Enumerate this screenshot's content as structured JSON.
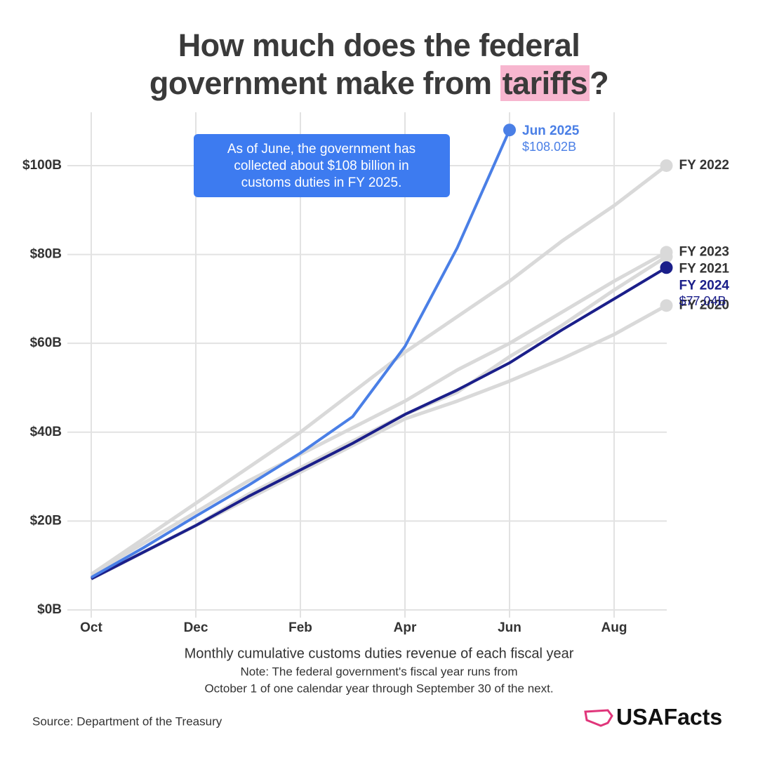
{
  "chart_data": {
    "type": "line",
    "title": [
      "How much does the federal",
      "government make from",
      "tariffs",
      "?"
    ],
    "annotation": [
      "As of June, the government has",
      "collected about $108 billion in",
      "customs duties in FY 2025."
    ],
    "x_label": "Monthly cumulative customs duties revenue of each fiscal year",
    "note": [
      "Note: The federal government's fiscal year runs from",
      "October 1 of one calendar year through September 30 of the next."
    ],
    "source": "Source: Department of the Treasury",
    "brand": "USAFacts",
    "categories": [
      "Oct",
      null,
      "Dec",
      null,
      "Feb",
      null,
      "Apr",
      null,
      "Jun",
      null,
      "Aug",
      null
    ],
    "series": [
      {
        "name": "FY 2022",
        "color": "#d9d9d9",
        "values": [
          8,
          16,
          24,
          32,
          40,
          49,
          58,
          66,
          74,
          83,
          91,
          100
        ]
      },
      {
        "name": "FY 2023",
        "color": "#d9d9d9",
        "values": [
          8,
          15,
          22,
          29,
          35,
          41,
          47,
          54,
          60,
          67,
          74,
          80.5
        ]
      },
      {
        "name": "FY 2021",
        "color": "#d9d9d9",
        "values": [
          7,
          13,
          19,
          26,
          32,
          38,
          44,
          49,
          57,
          64,
          72,
          79.5
        ]
      },
      {
        "name": "FY 2020",
        "color": "#d9d9d9",
        "values": [
          7,
          13,
          19,
          25,
          31,
          37,
          43,
          47,
          51.5,
          56.5,
          62,
          68.5
        ]
      },
      {
        "name": "FY 2024",
        "color": "#1b1f8a",
        "values": [
          7,
          13,
          19,
          25.5,
          31.5,
          37.5,
          44,
          49.5,
          55.6,
          63,
          70,
          77.04
        ],
        "value_labels": [
          null,
          null,
          null,
          null,
          null,
          null,
          null,
          null,
          null,
          null,
          null,
          "$77.04B"
        ]
      },
      {
        "name": "Jun 2025",
        "color": "#4a7fe6",
        "values": [
          7.3,
          14,
          21.1,
          28,
          35.3,
          43.5,
          59.3,
          81.5,
          108.02,
          null,
          null,
          null
        ],
        "value_labels": [
          null,
          null,
          null,
          null,
          null,
          null,
          null,
          null,
          "$108.02B",
          null,
          null,
          null
        ]
      }
    ],
    "ylim": [
      0,
      112
    ],
    "yticks": [
      {
        "value": 0,
        "label": "$0B"
      },
      {
        "value": 20,
        "label": "$20B"
      },
      {
        "value": 40,
        "label": "$40B"
      },
      {
        "value": 60,
        "label": "$60B"
      },
      {
        "value": 80,
        "label": "$80B"
      },
      {
        "value": 100,
        "label": "$100B"
      }
    ],
    "grid": true
  }
}
